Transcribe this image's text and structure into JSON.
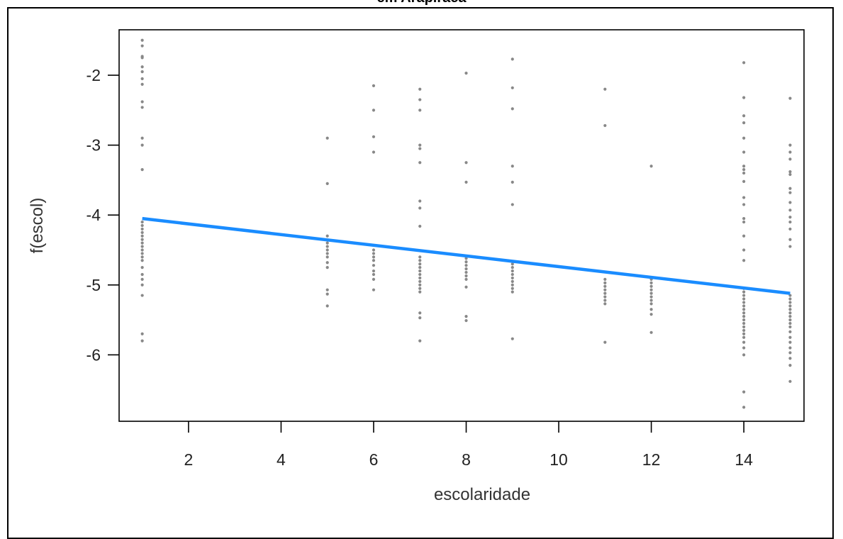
{
  "chart_data": {
    "type": "scatter",
    "title": "em Arapiraca",
    "xlabel": "escolaridade",
    "ylabel": "f(escol)",
    "xlim": [
      0.5,
      15.3
    ],
    "ylim": [
      -6.95,
      -1.35
    ],
    "x_ticks": [
      "2",
      "4",
      "6",
      "8",
      "10",
      "12",
      "14"
    ],
    "y_ticks": [
      "-2",
      "-3",
      "-4",
      "-5",
      "-6"
    ],
    "grid": false,
    "colors": {
      "points": "#888888",
      "line": "#1a8cff",
      "axis": "#000000"
    },
    "series": [
      {
        "type": "line",
        "x": [
          1,
          15
        ],
        "y": [
          -4.05,
          -5.12
        ]
      },
      {
        "type": "scatter",
        "points": [
          [
            1,
            -1.5
          ],
          [
            1,
            -1.58
          ],
          [
            1,
            -1.73
          ],
          [
            1,
            -1.75
          ],
          [
            1,
            -1.88
          ],
          [
            1,
            -1.95
          ],
          [
            1,
            -2.05
          ],
          [
            1,
            -2.13
          ],
          [
            1,
            -2.38
          ],
          [
            1,
            -2.46
          ],
          [
            1,
            -2.9
          ],
          [
            1,
            -3.0
          ],
          [
            1,
            -3.35
          ],
          [
            1,
            -4.1
          ],
          [
            1,
            -4.15
          ],
          [
            1,
            -4.2
          ],
          [
            1,
            -4.25
          ],
          [
            1,
            -4.3
          ],
          [
            1,
            -4.35
          ],
          [
            1,
            -4.4
          ],
          [
            1,
            -4.45
          ],
          [
            1,
            -4.5
          ],
          [
            1,
            -4.55
          ],
          [
            1,
            -4.6
          ],
          [
            1,
            -4.65
          ],
          [
            1,
            -4.75
          ],
          [
            1,
            -4.85
          ],
          [
            1,
            -4.92
          ],
          [
            1,
            -5.0
          ],
          [
            1,
            -5.15
          ],
          [
            1,
            -5.7
          ],
          [
            1,
            -5.8
          ],
          [
            5,
            -2.9
          ],
          [
            5,
            -3.55
          ],
          [
            5,
            -4.3
          ],
          [
            5,
            -4.4
          ],
          [
            5,
            -4.45
          ],
          [
            5,
            -4.5
          ],
          [
            5,
            -4.55
          ],
          [
            5,
            -4.6
          ],
          [
            5,
            -4.68
          ],
          [
            5,
            -4.75
          ],
          [
            5,
            -5.07
          ],
          [
            5,
            -5.13
          ],
          [
            5,
            -5.3
          ],
          [
            6,
            -2.15
          ],
          [
            6,
            -2.5
          ],
          [
            6,
            -2.88
          ],
          [
            6,
            -3.1
          ],
          [
            6,
            -4.5
          ],
          [
            6,
            -4.55
          ],
          [
            6,
            -4.6
          ],
          [
            6,
            -4.65
          ],
          [
            6,
            -4.72
          ],
          [
            6,
            -4.8
          ],
          [
            6,
            -4.85
          ],
          [
            6,
            -4.92
          ],
          [
            6,
            -5.07
          ],
          [
            7,
            -2.2
          ],
          [
            7,
            -2.35
          ],
          [
            7,
            -2.5
          ],
          [
            7,
            -3.0
          ],
          [
            7,
            -3.05
          ],
          [
            7,
            -3.25
          ],
          [
            7,
            -3.8
          ],
          [
            7,
            -3.9
          ],
          [
            7,
            -4.16
          ],
          [
            7,
            -4.6
          ],
          [
            7,
            -4.65
          ],
          [
            7,
            -4.7
          ],
          [
            7,
            -4.75
          ],
          [
            7,
            -4.8
          ],
          [
            7,
            -4.85
          ],
          [
            7,
            -4.9
          ],
          [
            7,
            -4.95
          ],
          [
            7,
            -5.0
          ],
          [
            7,
            -5.05
          ],
          [
            7,
            -5.1
          ],
          [
            7,
            -5.4
          ],
          [
            7,
            -5.47
          ],
          [
            7,
            -5.8
          ],
          [
            8,
            -1.97
          ],
          [
            8,
            -3.25
          ],
          [
            8,
            -3.53
          ],
          [
            8,
            -4.62
          ],
          [
            8,
            -4.67
          ],
          [
            8,
            -4.72
          ],
          [
            8,
            -4.77
          ],
          [
            8,
            -4.82
          ],
          [
            8,
            -4.87
          ],
          [
            8,
            -4.92
          ],
          [
            8,
            -5.03
          ],
          [
            8,
            -5.45
          ],
          [
            8,
            -5.51
          ],
          [
            9,
            -1.77
          ],
          [
            9,
            -2.18
          ],
          [
            9,
            -2.48
          ],
          [
            9,
            -3.3
          ],
          [
            9,
            -3.53
          ],
          [
            9,
            -3.85
          ],
          [
            9,
            -4.7
          ],
          [
            9,
            -4.75
          ],
          [
            9,
            -4.8
          ],
          [
            9,
            -4.85
          ],
          [
            9,
            -4.9
          ],
          [
            9,
            -4.95
          ],
          [
            9,
            -5.0
          ],
          [
            9,
            -5.05
          ],
          [
            9,
            -5.1
          ],
          [
            9,
            -5.77
          ],
          [
            11,
            -2.2
          ],
          [
            11,
            -2.72
          ],
          [
            11,
            -4.92
          ],
          [
            11,
            -4.97
          ],
          [
            11,
            -5.02
          ],
          [
            11,
            -5.07
          ],
          [
            11,
            -5.12
          ],
          [
            11,
            -5.17
          ],
          [
            11,
            -5.22
          ],
          [
            11,
            -5.27
          ],
          [
            11,
            -5.82
          ],
          [
            12,
            -3.3
          ],
          [
            12,
            -4.92
          ],
          [
            12,
            -4.97
          ],
          [
            12,
            -5.02
          ],
          [
            12,
            -5.07
          ],
          [
            12,
            -5.12
          ],
          [
            12,
            -5.17
          ],
          [
            12,
            -5.22
          ],
          [
            12,
            -5.27
          ],
          [
            12,
            -5.35
          ],
          [
            12,
            -5.42
          ],
          [
            12,
            -5.68
          ],
          [
            14,
            -1.82
          ],
          [
            14,
            -2.32
          ],
          [
            14,
            -2.58
          ],
          [
            14,
            -2.68
          ],
          [
            14,
            -2.9
          ],
          [
            14,
            -3.1
          ],
          [
            14,
            -3.3
          ],
          [
            14,
            -3.35
          ],
          [
            14,
            -3.4
          ],
          [
            14,
            -3.52
          ],
          [
            14,
            -3.75
          ],
          [
            14,
            -3.85
          ],
          [
            14,
            -4.05
          ],
          [
            14,
            -4.1
          ],
          [
            14,
            -4.3
          ],
          [
            14,
            -4.5
          ],
          [
            14,
            -4.65
          ],
          [
            14,
            -5.05
          ],
          [
            14,
            -5.1
          ],
          [
            14,
            -5.15
          ],
          [
            14,
            -5.2
          ],
          [
            14,
            -5.25
          ],
          [
            14,
            -5.3
          ],
          [
            14,
            -5.35
          ],
          [
            14,
            -5.4
          ],
          [
            14,
            -5.45
          ],
          [
            14,
            -5.5
          ],
          [
            14,
            -5.55
          ],
          [
            14,
            -5.6
          ],
          [
            14,
            -5.65
          ],
          [
            14,
            -5.7
          ],
          [
            14,
            -5.75
          ],
          [
            14,
            -5.82
          ],
          [
            14,
            -5.9
          ],
          [
            14,
            -6.0
          ],
          [
            14,
            -6.53
          ],
          [
            14,
            -6.75
          ],
          [
            15,
            -2.33
          ],
          [
            15,
            -3.0
          ],
          [
            15,
            -3.1
          ],
          [
            15,
            -3.2
          ],
          [
            15,
            -3.38
          ],
          [
            15,
            -3.42
          ],
          [
            15,
            -3.62
          ],
          [
            15,
            -3.68
          ],
          [
            15,
            -3.82
          ],
          [
            15,
            -3.93
          ],
          [
            15,
            -4.03
          ],
          [
            15,
            -4.1
          ],
          [
            15,
            -4.2
          ],
          [
            15,
            -4.35
          ],
          [
            15,
            -4.45
          ],
          [
            15,
            -5.15
          ],
          [
            15,
            -5.2
          ],
          [
            15,
            -5.25
          ],
          [
            15,
            -5.3
          ],
          [
            15,
            -5.35
          ],
          [
            15,
            -5.4
          ],
          [
            15,
            -5.45
          ],
          [
            15,
            -5.5
          ],
          [
            15,
            -5.55
          ],
          [
            15,
            -5.6
          ],
          [
            15,
            -5.67
          ],
          [
            15,
            -5.75
          ],
          [
            15,
            -5.82
          ],
          [
            15,
            -5.9
          ],
          [
            15,
            -5.97
          ],
          [
            15,
            -6.05
          ],
          [
            15,
            -6.15
          ],
          [
            15,
            -6.38
          ]
        ]
      }
    ]
  }
}
